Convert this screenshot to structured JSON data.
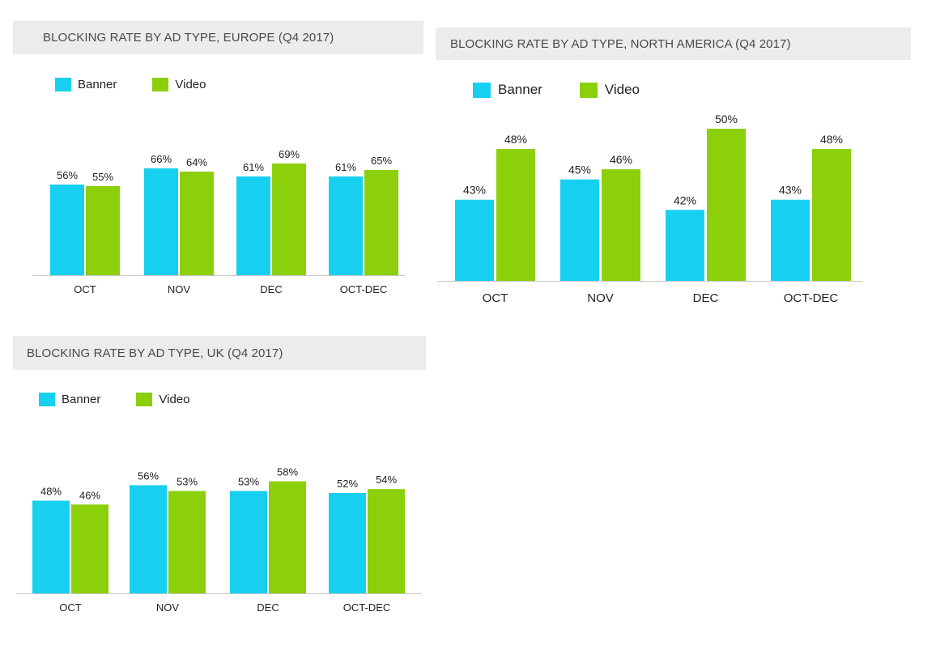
{
  "colors": {
    "banner": "#17d0ef",
    "video": "#8ccf0b",
    "axis": "#c8c8c8",
    "title_bg": "#ececee"
  },
  "legend": {
    "banner": "Banner",
    "video": "Video"
  },
  "chart_data": [
    {
      "type": "bar",
      "title": "BLOCKING RATE BY AD TYPE, EUROPE (Q4 2017)",
      "categories": [
        "OCT",
        "NOV",
        "DEC",
        "OCT-DEC"
      ],
      "series": [
        {
          "name": "Banner",
          "values": [
            56,
            66,
            61,
            61
          ],
          "labels": [
            "56%",
            "66%",
            "61%",
            "61%"
          ]
        },
        {
          "name": "Video",
          "values": [
            55,
            64,
            69,
            65
          ],
          "labels": [
            "55%",
            "64%",
            "69%",
            "65%"
          ]
        }
      ],
      "ylim": [
        0,
        100
      ],
      "grid": false,
      "legend_position": "top-left"
    },
    {
      "type": "bar",
      "title": "BLOCKING RATE BY AD TYPE, NORTH AMERICA (Q4 2017)",
      "categories": [
        "OCT",
        "NOV",
        "DEC",
        "OCT-DEC"
      ],
      "series": [
        {
          "name": "Banner",
          "values": [
            43,
            45,
            42,
            43
          ],
          "labels": [
            "43%",
            "45%",
            "42%",
            "43%"
          ]
        },
        {
          "name": "Video",
          "values": [
            48,
            46,
            50,
            48
          ],
          "labels": [
            "48%",
            "46%",
            "50%",
            "48%"
          ]
        }
      ],
      "ylim": [
        35,
        50
      ],
      "grid": false,
      "legend_position": "top-left"
    },
    {
      "type": "bar",
      "title": "BLOCKING RATE BY AD TYPE, UK (Q4 2017)",
      "categories": [
        "OCT",
        "NOV",
        "DEC",
        "OCT-DEC"
      ],
      "series": [
        {
          "name": "Banner",
          "values": [
            48,
            56,
            53,
            52
          ],
          "labels": [
            "48%",
            "56%",
            "53%",
            "52%"
          ]
        },
        {
          "name": "Video",
          "values": [
            46,
            53,
            58,
            54
          ],
          "labels": [
            "46%",
            "53%",
            "58%",
            "54%"
          ]
        }
      ],
      "ylim": [
        0,
        83
      ],
      "grid": false,
      "legend_position": "top-left"
    }
  ]
}
